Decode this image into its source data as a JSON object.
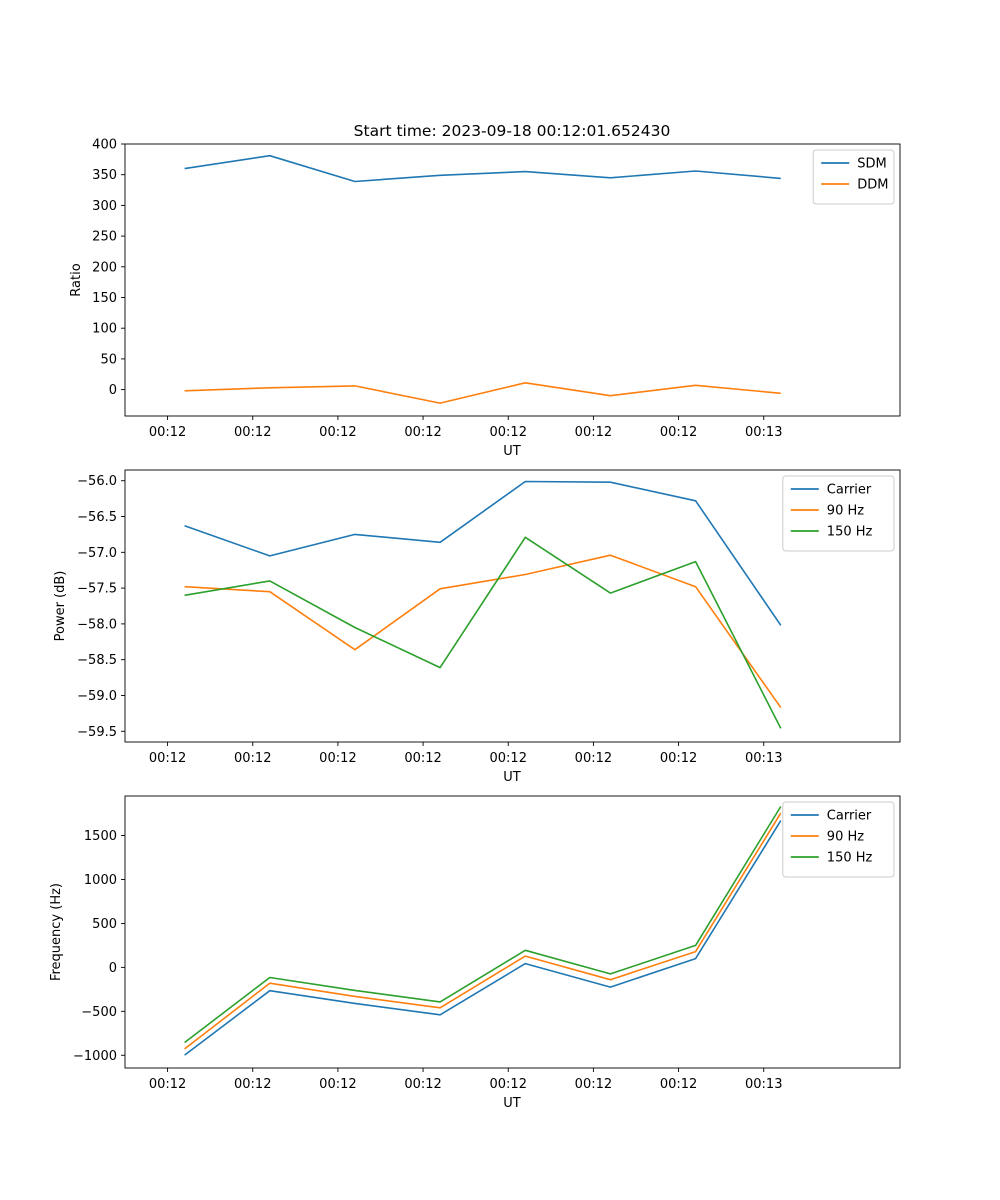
{
  "figure": {
    "title": "Start time: 2023-09-18 00:12:01.652430"
  },
  "chart_data": [
    {
      "type": "line",
      "xlabel": "UT",
      "ylabel": "Ratio",
      "ylim": [
        -43,
        400
      ],
      "yticks": [
        0,
        50,
        100,
        150,
        200,
        250,
        300,
        350,
        400
      ],
      "xticks": [
        "00:12",
        "00:12",
        "00:12",
        "00:12",
        "00:12",
        "00:12",
        "00:12",
        "00:13"
      ],
      "xlim": [
        -0.5,
        8.6
      ],
      "x": [
        0.2,
        1.2,
        2.2,
        3.2,
        4.2,
        5.2,
        6.2,
        7.2
      ],
      "legend": "top-right",
      "series": [
        {
          "name": "SDM",
          "color": "#1f77b4",
          "values": [
            360,
            381,
            339,
            349,
            355,
            345,
            356,
            344
          ]
        },
        {
          "name": "DDM",
          "color": "#ff7f0e",
          "values": [
            -2,
            3,
            6,
            -22,
            11,
            -10,
            7,
            -6
          ]
        }
      ]
    },
    {
      "type": "line",
      "xlabel": "UT",
      "ylabel": "Power (dB)",
      "ylim": [
        -59.65,
        -55.85
      ],
      "yticks": [
        -59.5,
        -59.0,
        -58.5,
        -58.0,
        -57.5,
        -57.0,
        -56.5,
        -56.0
      ],
      "xticks": [
        "00:12",
        "00:12",
        "00:12",
        "00:12",
        "00:12",
        "00:12",
        "00:12",
        "00:13"
      ],
      "xlim": [
        -0.5,
        8.6
      ],
      "x": [
        0.2,
        1.2,
        2.2,
        3.2,
        4.2,
        5.2,
        6.2,
        7.2
      ],
      "legend": "top-right",
      "series": [
        {
          "name": "Carrier",
          "color": "#1f77b4",
          "values": [
            -56.63,
            -57.05,
            -56.75,
            -56.86,
            -56.01,
            -56.02,
            -56.28,
            -58.02
          ]
        },
        {
          "name": "90 Hz",
          "color": "#ff7f0e",
          "values": [
            -57.48,
            -57.55,
            -58.36,
            -57.51,
            -57.31,
            -57.04,
            -57.48,
            -59.17
          ]
        },
        {
          "name": "150 Hz",
          "color": "#2ca02c",
          "values": [
            -57.6,
            -57.4,
            -58.05,
            -58.61,
            -56.79,
            -57.57,
            -57.13,
            -59.46
          ]
        }
      ]
    },
    {
      "type": "line",
      "xlabel": "UT",
      "ylabel": "Frequency (Hz)",
      "ylim": [
        -1145,
        1950
      ],
      "yticks": [
        -1000,
        -500,
        0,
        500,
        1000,
        1500
      ],
      "xticks": [
        "00:12",
        "00:12",
        "00:12",
        "00:12",
        "00:12",
        "00:12",
        "00:12",
        "00:13"
      ],
      "xlim": [
        -0.5,
        8.6
      ],
      "x": [
        0.2,
        1.2,
        2.2,
        3.2,
        4.2,
        5.2,
        6.2,
        7.2
      ],
      "legend": "top-right",
      "series": [
        {
          "name": "Carrier",
          "color": "#1f77b4",
          "values": [
            -998,
            -265,
            -410,
            -540,
            43,
            -225,
            100,
            1670
          ]
        },
        {
          "name": "90 Hz",
          "color": "#ff7f0e",
          "values": [
            -928,
            -180,
            -330,
            -460,
            128,
            -140,
            180,
            1755
          ]
        },
        {
          "name": "150 Hz",
          "color": "#2ca02c",
          "values": [
            -855,
            -115,
            -262,
            -393,
            194,
            -74,
            250,
            1830
          ]
        }
      ]
    }
  ]
}
